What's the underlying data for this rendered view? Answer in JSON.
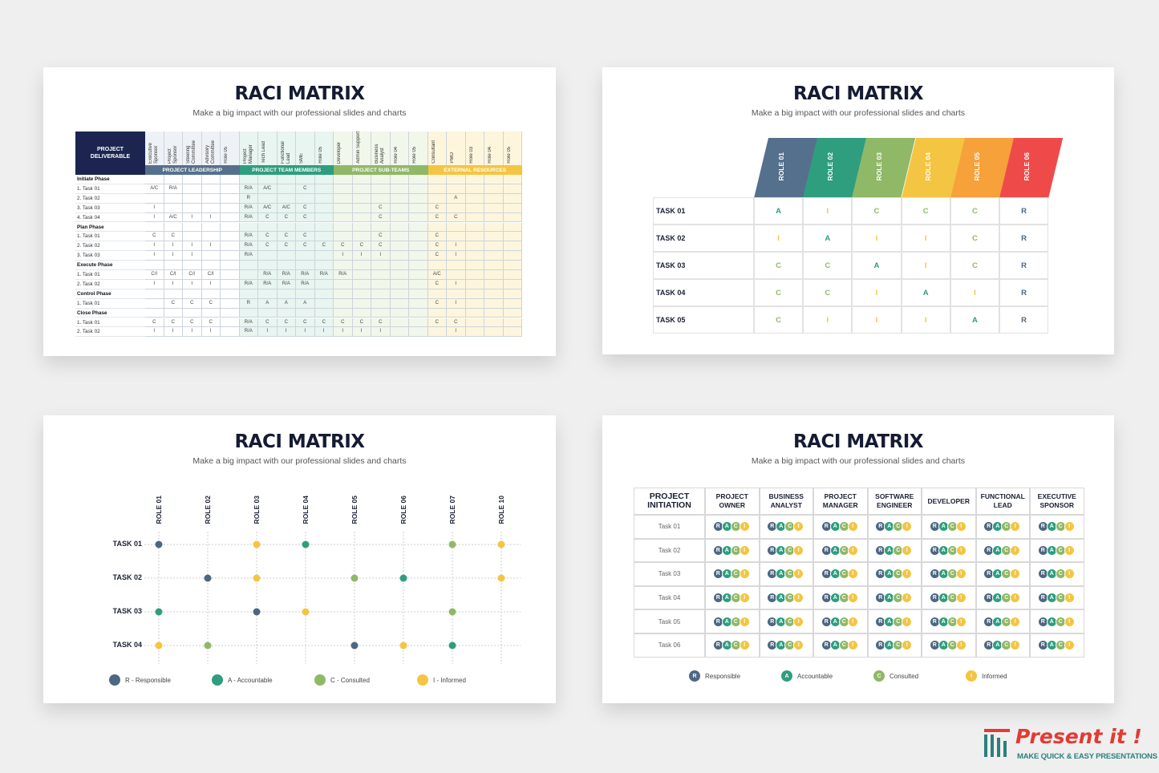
{
  "colors": {
    "R": "#4c6781",
    "A": "#2e9e7e",
    "C": "#8fb867",
    "I": "#f4c542"
  },
  "common": {
    "title": "RACI MATRIX",
    "subtitle": "Make a big impact with our professional slides and charts"
  },
  "slide1": {
    "corner": "PROJECT DELIVERABLE",
    "roles": [
      "Executive Sponsor",
      "Project Sponsor",
      "Steering Committee",
      "Advisory Committee",
      "Role 05",
      "Project Manager",
      "Tech Lead",
      "Functional Lead",
      "SME",
      "Role 05",
      "Developer",
      "Admin Support",
      "Business Analyst",
      "Role 04",
      "Role 05",
      "Consultant",
      "PMO",
      "Role 03",
      "Role 04",
      "Role 05"
    ],
    "groups": [
      {
        "label": "PROJECT LEADERSHIP",
        "color": "#55708c",
        "light": "#eef2f6"
      },
      {
        "label": "PROJECT TEAM MEMBERS",
        "color": "#2e9e7e",
        "light": "#e8f5f0"
      },
      {
        "label": "PROJECT SUB-TEAMS",
        "color": "#8fb867",
        "light": "#f1f7ea"
      },
      {
        "label": "EXTERNAL RESOURCES",
        "color": "#f4c542",
        "light": "#fdf6dd"
      }
    ],
    "rows": [
      {
        "label": "Initiate Phase",
        "phase": true,
        "cells": []
      },
      {
        "label": "1. Task 01",
        "cells": [
          "A/C",
          "R/A",
          "",
          "",
          "",
          "R/A",
          "A/C",
          "",
          "C",
          "",
          "",
          "",
          "",
          "",
          "",
          "",
          "",
          "",
          "",
          ""
        ]
      },
      {
        "label": "2. Task 02",
        "cells": [
          "",
          "",
          "",
          "",
          "",
          "R",
          "",
          "",
          "",
          "",
          "",
          "",
          "",
          "",
          "",
          "",
          "A",
          "",
          "",
          ""
        ]
      },
      {
        "label": "3. Task 03",
        "cells": [
          "I",
          "",
          "",
          "",
          "",
          "R/A",
          "A/C",
          "A/C",
          "C",
          "",
          "",
          "",
          "C",
          "",
          "",
          "C",
          "",
          "",
          "",
          ""
        ]
      },
      {
        "label": "4. Task 04",
        "cells": [
          "I",
          "A/C",
          "I",
          "I",
          "",
          "R/A",
          "C",
          "C",
          "C",
          "",
          "",
          "",
          "C",
          "",
          "",
          "C",
          "C",
          "",
          "",
          ""
        ]
      },
      {
        "label": "Plan Phase",
        "phase": true,
        "cells": []
      },
      {
        "label": "1. Task 01",
        "cells": [
          "C",
          "C",
          "",
          "",
          "",
          "R/A",
          "C",
          "C",
          "C",
          "",
          "",
          "",
          "C",
          "",
          "",
          "C",
          "",
          "",
          "",
          ""
        ]
      },
      {
        "label": "2. Task 02",
        "cells": [
          "I",
          "I",
          "I",
          "I",
          "",
          "R/A",
          "C",
          "C",
          "C",
          "C",
          "C",
          "C",
          "C",
          "",
          "",
          "C",
          "I",
          "",
          "",
          ""
        ]
      },
      {
        "label": "3. Task 03",
        "cells": [
          "I",
          "I",
          "I",
          "",
          "",
          "R/A",
          "",
          "",
          "",
          "",
          "I",
          "I",
          "I",
          "",
          "",
          "C",
          "I",
          "",
          "",
          ""
        ]
      },
      {
        "label": "Execute Phase",
        "phase": true,
        "cells": []
      },
      {
        "label": "1. Task 01",
        "cells": [
          "C/I",
          "C/I",
          "C/I",
          "C/I",
          "",
          "",
          "R/A",
          "R/A",
          "R/A",
          "R/A",
          "R/A",
          "",
          "",
          "",
          "",
          "A/C",
          "",
          "",
          "",
          ""
        ]
      },
      {
        "label": "2. Task 02",
        "cells": [
          "I",
          "I",
          "I",
          "I",
          "",
          "R/A",
          "R/A",
          "R/A",
          "R/A",
          "",
          "",
          "",
          "",
          "",
          "",
          "C",
          "I",
          "",
          "",
          ""
        ]
      },
      {
        "label": "Control Phase",
        "phase": true,
        "cells": []
      },
      {
        "label": "1. Task 01",
        "cells": [
          "",
          "C",
          "C",
          "C",
          "",
          "R",
          "A",
          "A",
          "A",
          "",
          "",
          "",
          "",
          "",
          "",
          "C",
          "I",
          "",
          "",
          ""
        ]
      },
      {
        "label": "Close Phase",
        "phase": true,
        "cells": []
      },
      {
        "label": "1. Task 01",
        "cells": [
          "C",
          "C",
          "C",
          "C",
          "",
          "R/A",
          "C",
          "C",
          "C",
          "C",
          "C",
          "C",
          "C",
          "",
          "",
          "C",
          "C",
          "",
          "",
          ""
        ]
      },
      {
        "label": "2. Task 02",
        "cells": [
          "I",
          "I",
          "I",
          "I",
          "",
          "R/A",
          "I",
          "I",
          "I",
          "I",
          "I",
          "I",
          "I",
          "",
          "",
          "",
          "I",
          "",
          "",
          ""
        ]
      }
    ]
  },
  "slide2": {
    "roles": [
      {
        "label": "ROLE 01",
        "color": "#55708c"
      },
      {
        "label": "ROLE 02",
        "color": "#2e9e7e"
      },
      {
        "label": "ROLE 03",
        "color": "#8fb867"
      },
      {
        "label": "ROLE 04",
        "color": "#f4c542"
      },
      {
        "label": "ROLE 05",
        "color": "#f6a13a"
      },
      {
        "label": "ROLE 06",
        "color": "#ef4a4a"
      }
    ],
    "tasks": [
      {
        "label": "TASK 01",
        "cells": [
          "A",
          "I",
          "C",
          "C",
          "C",
          "R"
        ]
      },
      {
        "label": "TASK 02",
        "cells": [
          "I",
          "A",
          "I",
          "I",
          "C",
          "R"
        ]
      },
      {
        "label": "TASK 03",
        "cells": [
          "C",
          "C",
          "A",
          "I",
          "C",
          "R"
        ]
      },
      {
        "label": "TASK 04",
        "cells": [
          "C",
          "C",
          "I",
          "A",
          "I",
          "R"
        ]
      },
      {
        "label": "TASK 05",
        "cells": [
          "C",
          "I",
          "I",
          "I",
          "A",
          "R"
        ]
      }
    ]
  },
  "slide3": {
    "roles": [
      "ROLE 01",
      "ROLE 02",
      "ROLE 03",
      "ROLE 04",
      "ROLE 05",
      "ROLE 06",
      "ROLE 07",
      "ROLE 10"
    ],
    "tasks": [
      {
        "label": "TASK 01",
        "cells": [
          "R",
          "",
          "I",
          "A",
          "",
          "",
          "C",
          "I"
        ]
      },
      {
        "label": "TASK 02",
        "cells": [
          "",
          "R",
          "I",
          "",
          "C",
          "A",
          "",
          "I"
        ]
      },
      {
        "label": "TASK 03",
        "cells": [
          "A",
          "",
          "R",
          "I",
          "",
          "",
          "C",
          ""
        ]
      },
      {
        "label": "TASK 04",
        "cells": [
          "I",
          "C",
          "",
          "",
          "R",
          "I",
          "A",
          ""
        ]
      }
    ],
    "legend": [
      {
        "key": "R",
        "label": "R - Responsible"
      },
      {
        "key": "A",
        "label": "A - Accountable"
      },
      {
        "key": "C",
        "label": "C - Consulted"
      },
      {
        "key": "I",
        "label": "I - Informed"
      }
    ]
  },
  "slide4": {
    "corner": "PROJECT INITIATION",
    "roles": [
      "PROJECT OWNER",
      "BUSINESS ANALYST",
      "PROJECT MANAGER",
      "SOFTWARE ENGINEER",
      "DEVELOPER",
      "FUNCTIONAL LEAD",
      "EXECUTIVE SPONSOR"
    ],
    "tasks": [
      "Task 01",
      "Task 02",
      "Task 03",
      "Task 04",
      "Task 05",
      "Task 06"
    ],
    "chips": [
      "R",
      "A",
      "C",
      "I"
    ],
    "legend": [
      {
        "key": "R",
        "label": "Responsible"
      },
      {
        "key": "A",
        "label": "Accountable"
      },
      {
        "key": "C",
        "label": "Consulted"
      },
      {
        "key": "I",
        "label": "Informed"
      }
    ]
  },
  "brand": {
    "name": "Present it !",
    "tagline": "MAKE QUICK & EASY PRESENTATIONS"
  }
}
